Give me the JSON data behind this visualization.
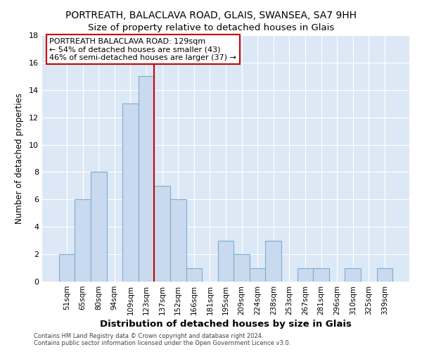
{
  "title": "PORTREATH, BALACLAVA ROAD, GLAIS, SWANSEA, SA7 9HH",
  "subtitle": "Size of property relative to detached houses in Glais",
  "xlabel": "Distribution of detached houses by size in Glais",
  "ylabel": "Number of detached properties",
  "bar_labels": [
    "51sqm",
    "65sqm",
    "80sqm",
    "94sqm",
    "109sqm",
    "123sqm",
    "137sqm",
    "152sqm",
    "166sqm",
    "181sqm",
    "195sqm",
    "209sqm",
    "224sqm",
    "238sqm",
    "253sqm",
    "267sqm",
    "281sqm",
    "296sqm",
    "310sqm",
    "325sqm",
    "339sqm"
  ],
  "bar_heights": [
    2,
    6,
    8,
    0,
    13,
    15,
    7,
    6,
    1,
    0,
    3,
    2,
    1,
    3,
    0,
    1,
    1,
    0,
    1,
    0,
    1
  ],
  "bar_color": "#c9d9ee",
  "bar_edge_color": "#7bafd4",
  "vline_x": 5.5,
  "vline_color": "#cc0000",
  "ylim": [
    0,
    18
  ],
  "yticks": [
    0,
    2,
    4,
    6,
    8,
    10,
    12,
    14,
    16,
    18
  ],
  "annotation_title": "PORTREATH BALACLAVA ROAD: 129sqm",
  "annotation_line1": "← 54% of detached houses are smaller (43)",
  "annotation_line2": "46% of semi-detached houses are larger (37) →",
  "annotation_box_facecolor": "#ffffff",
  "annotation_box_edgecolor": "#cc0000",
  "footer_line1": "Contains HM Land Registry data © Crown copyright and database right 2024.",
  "footer_line2": "Contains public sector information licensed under the Open Government Licence v3.0.",
  "fig_background": "#ffffff",
  "axes_background": "#dce8f5",
  "grid_color": "#ffffff",
  "title_fontsize": 10,
  "subtitle_fontsize": 9.5,
  "xlabel_fontsize": 9.5,
  "ylabel_fontsize": 8.5
}
